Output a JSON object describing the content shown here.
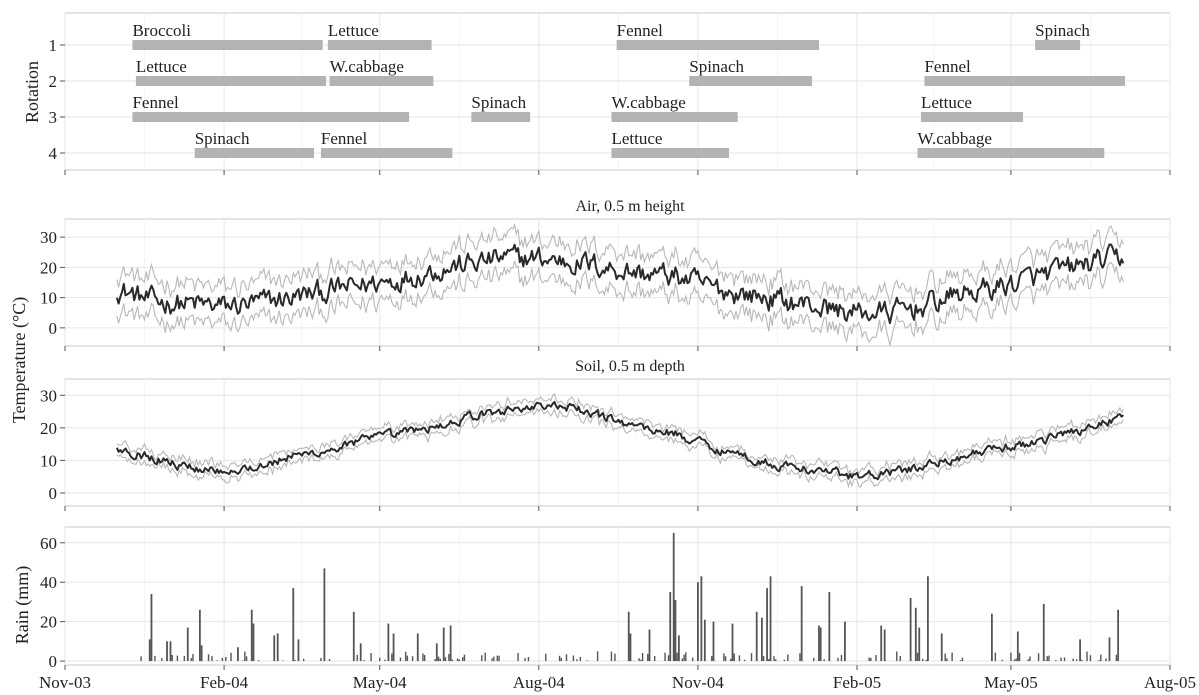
{
  "x_axis": {
    "start": "2003-11-01",
    "end": "2005-08-01",
    "tick_labels": [
      "Nov-03",
      "Feb-04",
      "May-04",
      "Aug-04",
      "Nov-04",
      "Feb-05",
      "May-05",
      "Aug-05"
    ],
    "tick_dates": [
      "2003-11-01",
      "2004-02-01",
      "2004-05-01",
      "2004-08-01",
      "2004-11-01",
      "2005-02-01",
      "2005-05-01",
      "2005-08-01"
    ]
  },
  "y_labels": {
    "rotation": "Rotation",
    "temperature": "Temperature (°C)",
    "rain": "Rain (mm)"
  },
  "chart_data": [
    {
      "type": "gantt",
      "ylabel": "Rotation",
      "categories": [
        "1",
        "2",
        "3",
        "4"
      ],
      "bar_color": "#b3b3b3",
      "crops": [
        {
          "rotation": 1,
          "name": "Broccoli",
          "start": "2003-12-10",
          "end": "2004-03-29"
        },
        {
          "rotation": 1,
          "name": "Lettuce",
          "start": "2004-04-01",
          "end": "2004-05-31"
        },
        {
          "rotation": 1,
          "name": "Fennel",
          "start": "2004-09-15",
          "end": "2005-01-10"
        },
        {
          "rotation": 1,
          "name": "Spinach",
          "start": "2005-05-15",
          "end": "2005-06-10"
        },
        {
          "rotation": 2,
          "name": "Lettuce",
          "start": "2003-12-12",
          "end": "2004-03-31"
        },
        {
          "rotation": 2,
          "name": "W.cabbage",
          "start": "2004-04-02",
          "end": "2004-06-01"
        },
        {
          "rotation": 2,
          "name": "Spinach",
          "start": "2004-10-27",
          "end": "2005-01-06"
        },
        {
          "rotation": 2,
          "name": "Fennel",
          "start": "2005-03-12",
          "end": "2005-07-06"
        },
        {
          "rotation": 3,
          "name": "Fennel",
          "start": "2003-12-10",
          "end": "2004-05-18"
        },
        {
          "rotation": 3,
          "name": "Spinach",
          "start": "2004-06-23",
          "end": "2004-07-27"
        },
        {
          "rotation": 3,
          "name": "W.cabbage",
          "start": "2004-09-12",
          "end": "2004-11-24"
        },
        {
          "rotation": 3,
          "name": "Lettuce",
          "start": "2005-03-10",
          "end": "2005-05-08"
        },
        {
          "rotation": 4,
          "name": "Spinach",
          "start": "2004-01-15",
          "end": "2004-03-24"
        },
        {
          "rotation": 4,
          "name": "Fennel",
          "start": "2004-03-28",
          "end": "2004-06-12"
        },
        {
          "rotation": 4,
          "name": "Lettuce",
          "start": "2004-09-12",
          "end": "2004-11-19"
        },
        {
          "rotation": 4,
          "name": "W.cabbage",
          "start": "2005-03-08",
          "end": "2005-06-24"
        }
      ]
    },
    {
      "type": "line",
      "title": "Air, 0.5 m height",
      "ylabel": "Temperature (°C)",
      "ylim": [
        -6,
        36
      ],
      "yticks": [
        0,
        10,
        20,
        30
      ],
      "mean_color": "#2a2a2a",
      "band_color": "#b8b8b8",
      "anchors": [
        [
          "2003-12-01",
          13
        ],
        [
          "2003-12-20",
          9
        ],
        [
          "2004-01-10",
          8
        ],
        [
          "2004-01-31",
          7
        ],
        [
          "2004-02-20",
          8
        ],
        [
          "2004-03-10",
          10
        ],
        [
          "2004-03-31",
          12
        ],
        [
          "2004-04-20",
          14
        ],
        [
          "2004-05-10",
          16
        ],
        [
          "2004-05-31",
          19
        ],
        [
          "2004-06-20",
          21
        ],
        [
          "2004-07-10",
          23
        ],
        [
          "2004-07-31",
          23
        ],
        [
          "2004-08-20",
          22
        ],
        [
          "2004-09-10",
          20
        ],
        [
          "2004-09-30",
          18
        ],
        [
          "2004-10-20",
          17
        ],
        [
          "2004-11-10",
          13
        ],
        [
          "2004-11-30",
          11
        ],
        [
          "2004-12-20",
          9
        ],
        [
          "2005-01-10",
          7
        ],
        [
          "2005-01-31",
          5
        ],
        [
          "2005-02-20",
          5
        ],
        [
          "2005-03-10",
          7
        ],
        [
          "2005-03-31",
          11
        ],
        [
          "2005-04-20",
          13
        ],
        [
          "2005-05-10",
          16
        ],
        [
          "2005-05-31",
          19
        ],
        [
          "2005-06-20",
          22
        ],
        [
          "2005-07-05",
          23
        ]
      ],
      "noise": 3.2,
      "band": 5.5
    },
    {
      "type": "line",
      "title": "Soil, 0.5 m depth",
      "ylabel": "Temperature (°C)",
      "ylim": [
        -4,
        35
      ],
      "yticks": [
        0,
        10,
        20,
        30
      ],
      "mean_color": "#2a2a2a",
      "band_color": "#b8b8b8",
      "anchors": [
        [
          "2003-12-01",
          14
        ],
        [
          "2003-12-20",
          11
        ],
        [
          "2004-01-10",
          8
        ],
        [
          "2004-01-31",
          7
        ],
        [
          "2004-02-20",
          8
        ],
        [
          "2004-03-10",
          11
        ],
        [
          "2004-03-31",
          13
        ],
        [
          "2004-04-20",
          16
        ],
        [
          "2004-05-10",
          18
        ],
        [
          "2004-05-31",
          20
        ],
        [
          "2004-06-20",
          23
        ],
        [
          "2004-07-10",
          25
        ],
        [
          "2004-07-31",
          27
        ],
        [
          "2004-08-20",
          26
        ],
        [
          "2004-09-10",
          23
        ],
        [
          "2004-09-30",
          20
        ],
        [
          "2004-10-20",
          18
        ],
        [
          "2004-11-10",
          14
        ],
        [
          "2004-11-30",
          11
        ],
        [
          "2004-12-20",
          8
        ],
        [
          "2005-01-10",
          7
        ],
        [
          "2005-01-31",
          5
        ],
        [
          "2005-02-20",
          6
        ],
        [
          "2005-03-10",
          8
        ],
        [
          "2005-03-31",
          11
        ],
        [
          "2005-04-20",
          13
        ],
        [
          "2005-05-10",
          15
        ],
        [
          "2005-05-31",
          18
        ],
        [
          "2005-06-20",
          21
        ],
        [
          "2005-07-05",
          24
        ]
      ],
      "noise": 1.2,
      "band": 1.3
    },
    {
      "type": "bar",
      "ylabel": "Rain (mm)",
      "ylim": [
        -2,
        68
      ],
      "yticks": [
        0,
        20,
        40,
        60
      ],
      "bar_color": "#555555",
      "events": [
        [
          "2003-12-20",
          11
        ],
        [
          "2003-12-21",
          34
        ],
        [
          "2003-12-30",
          10
        ],
        [
          "2004-01-01",
          10
        ],
        [
          "2004-01-11",
          17
        ],
        [
          "2004-01-18",
          26
        ],
        [
          "2004-01-19",
          8
        ],
        [
          "2004-02-09",
          7
        ],
        [
          "2004-02-17",
          26
        ],
        [
          "2004-02-18",
          19
        ],
        [
          "2004-03-01",
          13
        ],
        [
          "2004-03-03",
          14
        ],
        [
          "2004-03-12",
          37
        ],
        [
          "2004-03-15",
          11
        ],
        [
          "2004-03-30",
          47
        ],
        [
          "2004-04-16",
          25
        ],
        [
          "2004-04-20",
          9
        ],
        [
          "2004-05-06",
          19
        ],
        [
          "2004-05-09",
          14
        ],
        [
          "2004-05-23",
          14
        ],
        [
          "2004-06-03",
          9
        ],
        [
          "2004-06-07",
          17
        ],
        [
          "2004-06-11",
          18
        ],
        [
          "2004-09-22",
          25
        ],
        [
          "2004-09-23",
          14
        ],
        [
          "2004-10-04",
          16
        ],
        [
          "2004-10-16",
          35
        ],
        [
          "2004-10-18",
          65
        ],
        [
          "2004-10-19",
          31
        ],
        [
          "2004-10-21",
          13
        ],
        [
          "2004-11-01",
          40
        ],
        [
          "2004-11-03",
          43
        ],
        [
          "2004-11-05",
          21
        ],
        [
          "2004-11-10",
          20
        ],
        [
          "2004-11-21",
          19
        ],
        [
          "2004-12-05",
          25
        ],
        [
          "2004-12-08",
          22
        ],
        [
          "2004-12-11",
          37
        ],
        [
          "2004-12-13",
          43
        ],
        [
          "2004-12-31",
          38
        ],
        [
          "2005-01-10",
          18
        ],
        [
          "2005-01-11",
          17
        ],
        [
          "2005-01-16",
          35
        ],
        [
          "2005-01-25",
          20
        ],
        [
          "2005-02-15",
          18
        ],
        [
          "2005-02-17",
          16
        ],
        [
          "2005-03-04",
          32
        ],
        [
          "2005-03-07",
          27
        ],
        [
          "2005-03-09",
          17
        ],
        [
          "2005-03-14",
          43
        ],
        [
          "2005-03-22",
          14
        ],
        [
          "2005-04-20",
          24
        ],
        [
          "2005-05-05",
          15
        ],
        [
          "2005-05-20",
          29
        ],
        [
          "2005-06-10",
          11
        ],
        [
          "2005-06-27",
          12
        ],
        [
          "2005-07-02",
          26
        ]
      ],
      "drizzle_start": "2003-12-15",
      "drizzle_end": "2005-07-04"
    }
  ]
}
